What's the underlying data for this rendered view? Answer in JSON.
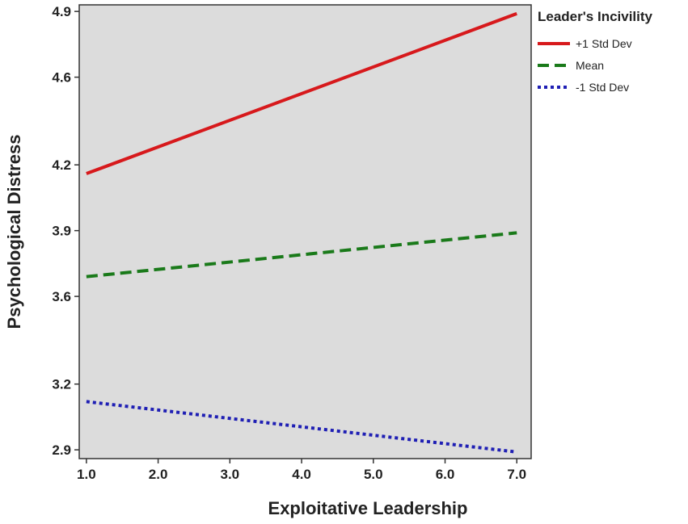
{
  "chart_data": {
    "type": "line",
    "xlabel": "Exploitative Leadership",
    "ylabel": "Psychological Distress",
    "xlim": [
      0.9,
      7.2
    ],
    "ylim": [
      2.86,
      4.93
    ],
    "x_ticks": [
      1.0,
      2.0,
      3.0,
      4.0,
      5.0,
      6.0,
      7.0
    ],
    "x_tick_labels": [
      "1.0",
      "2.0",
      "3.0",
      "4.0",
      "5.0",
      "6.0",
      "7.0"
    ],
    "y_ticks": [
      2.9,
      3.2,
      3.6,
      3.9,
      4.2,
      4.6,
      4.9
    ],
    "y_tick_labels": [
      "2.9",
      "3.2",
      "3.6",
      "3.9",
      "4.2",
      "4.6",
      "4.9"
    ],
    "grid": false,
    "plot_background": "#dcdcdc",
    "legend": {
      "title": "Leader's Incivility",
      "position": "outside-top-right"
    },
    "series": [
      {
        "name": "+1 Std Dev",
        "color": "#d7191c",
        "style": "solid",
        "x": [
          1.0,
          7.0
        ],
        "y": [
          4.16,
          4.89
        ]
      },
      {
        "name": "Mean",
        "color": "#1a7a1a",
        "style": "dashed",
        "x": [
          1.0,
          7.0
        ],
        "y": [
          3.69,
          3.89
        ]
      },
      {
        "name": "-1 Std Dev",
        "color": "#1f1fb4",
        "style": "dotted",
        "x": [
          1.0,
          7.0
        ],
        "y": [
          3.12,
          2.89
        ]
      }
    ]
  }
}
